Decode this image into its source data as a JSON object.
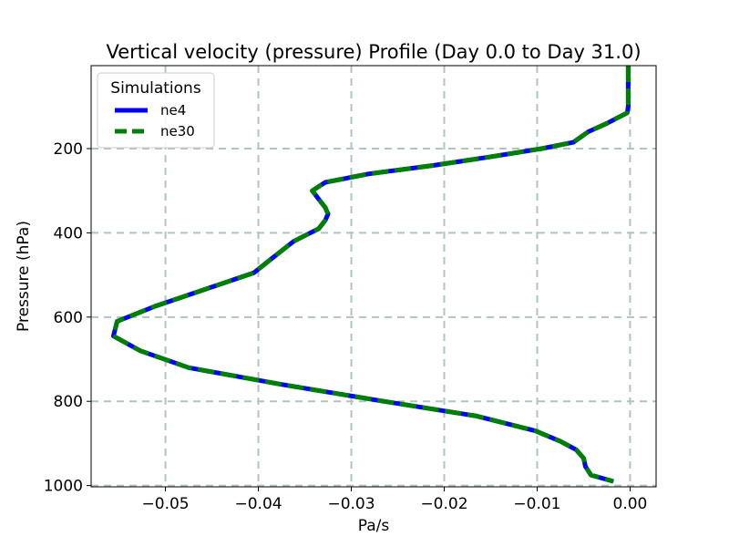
{
  "chart_data": {
    "type": "line",
    "title": "Vertical velocity (pressure) Profile (Day 0.0 to Day 31.0)",
    "xlabel": "Pa/s",
    "ylabel": "Pressure (hPa)",
    "xlim": [
      -0.058,
      0.0028
    ],
    "ylim": [
      1003,
      3
    ],
    "y_inverted": true,
    "x_ticks": [
      -0.05,
      -0.04,
      -0.03,
      -0.02,
      -0.01,
      0.0
    ],
    "x_tick_labels": [
      "−0.05",
      "−0.04",
      "−0.03",
      "−0.02",
      "−0.01",
      "0.00"
    ],
    "y_ticks": [
      200,
      400,
      600,
      800,
      1000
    ],
    "y_tick_labels": [
      "200",
      "400",
      "600",
      "800",
      "1000"
    ],
    "grid": true,
    "legend": {
      "title": "Simulations",
      "placement": "top-left"
    },
    "pressure": [
      3,
      20,
      40,
      60,
      80,
      100,
      115,
      140,
      160,
      185,
      200,
      220,
      240,
      260,
      280,
      300,
      320,
      340,
      355,
      370,
      390,
      420,
      460,
      495,
      530,
      575,
      610,
      645,
      680,
      720,
      760,
      800,
      835,
      870,
      895,
      915,
      935,
      955,
      975,
      990
    ],
    "series": [
      {
        "name": "ne4",
        "color": "#0000ff",
        "style": "solid",
        "values": [
          -0.0002,
          -0.0002,
          -0.0002,
          -0.0002,
          -0.0002,
          -0.0002,
          -0.0003,
          -0.0025,
          -0.0045,
          -0.0061,
          -0.0095,
          -0.0152,
          -0.0212,
          -0.0281,
          -0.0328,
          -0.0342,
          -0.0335,
          -0.0328,
          -0.0325,
          -0.0328,
          -0.0335,
          -0.0362,
          -0.0385,
          -0.0405,
          -0.0452,
          -0.0512,
          -0.0552,
          -0.0556,
          -0.0527,
          -0.0475,
          -0.0375,
          -0.0265,
          -0.0165,
          -0.0102,
          -0.0075,
          -0.0058,
          -0.005,
          -0.0048,
          -0.0042,
          -0.0018
        ]
      },
      {
        "name": "ne30",
        "color": "#008000",
        "style": "dashed",
        "values": [
          -0.0002,
          -0.0002,
          -0.0002,
          -0.0002,
          -0.0002,
          -0.0002,
          -0.0003,
          -0.0025,
          -0.0045,
          -0.0061,
          -0.0095,
          -0.0152,
          -0.0212,
          -0.0281,
          -0.0328,
          -0.0342,
          -0.0335,
          -0.0328,
          -0.0325,
          -0.0328,
          -0.0335,
          -0.0362,
          -0.0385,
          -0.0405,
          -0.0452,
          -0.0512,
          -0.0552,
          -0.0556,
          -0.0527,
          -0.0475,
          -0.0375,
          -0.0265,
          -0.0165,
          -0.0102,
          -0.0075,
          -0.0058,
          -0.005,
          -0.0048,
          -0.0042,
          -0.0018
        ]
      }
    ]
  },
  "colors": {
    "grid": "#b0c4c4",
    "axis": "#000000",
    "background": "#ffffff"
  }
}
